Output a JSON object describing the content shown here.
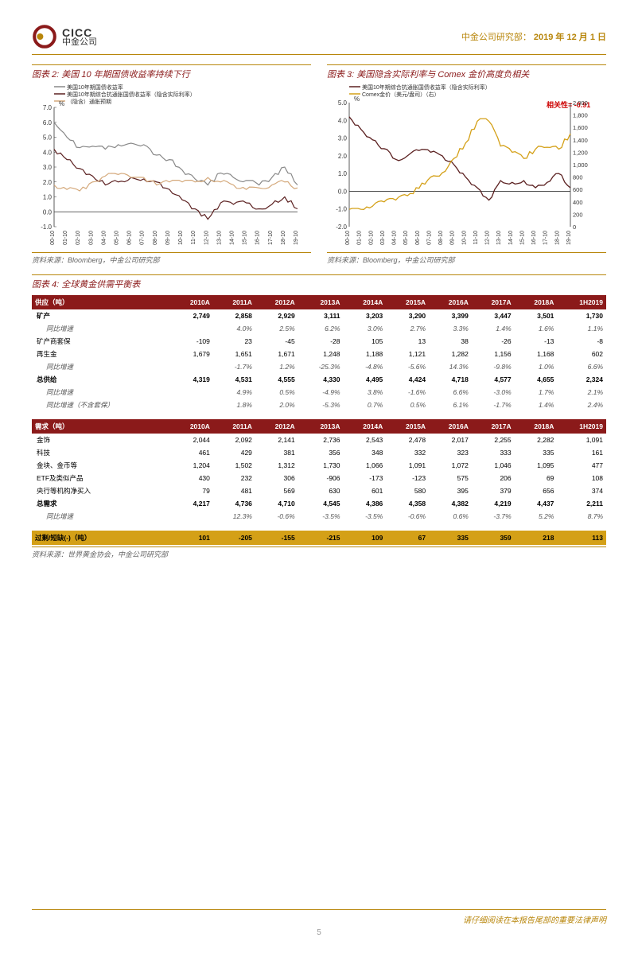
{
  "header": {
    "logo_en": "CICC",
    "logo_cn": "中金公司",
    "dept": "中金公司研究部：",
    "date": "2019 年 12 月 1 日"
  },
  "chart2": {
    "title": "图表 2: 美国 10 年期国债收益率持续下行",
    "legend": [
      {
        "label": "美国10年期国债收益率",
        "color": "#888888"
      },
      {
        "label": "美国10年期综合抗通胀国债收益率（隐含实际利率）",
        "color": "#5b2020"
      },
      {
        "label": "（隐含）通胀预期",
        "color": "#d4a87a"
      }
    ],
    "ylabel": "%",
    "ylim": [
      -1,
      7
    ],
    "yticks": [
      -1,
      0,
      1,
      2,
      3,
      4,
      5,
      6,
      7
    ],
    "xticks": [
      "00-10",
      "01-10",
      "02-10",
      "03-10",
      "04-10",
      "05-10",
      "06-10",
      "07-10",
      "08-10",
      "09-10",
      "10-10",
      "11-10",
      "12-10",
      "13-10",
      "14-10",
      "15-10",
      "16-10",
      "17-10",
      "18-10",
      "19-10"
    ],
    "series": {
      "nominal": [
        6.0,
        5.0,
        4.3,
        4.4,
        4.2,
        4.5,
        4.6,
        4.5,
        3.8,
        3.5,
        2.8,
        2.2,
        1.8,
        2.6,
        2.3,
        2.1,
        1.8,
        2.3,
        3.0,
        1.8
      ],
      "real": [
        4.2,
        3.5,
        2.9,
        2.4,
        1.8,
        2.0,
        2.3,
        2.2,
        2.0,
        1.5,
        0.8,
        0.2,
        -0.5,
        0.6,
        0.5,
        0.6,
        0.2,
        0.5,
        1.0,
        0.2
      ],
      "inflation": [
        1.8,
        1.5,
        1.4,
        2.0,
        2.4,
        2.5,
        2.3,
        2.3,
        1.8,
        2.0,
        2.0,
        2.0,
        2.3,
        2.0,
        1.8,
        1.5,
        1.6,
        1.8,
        2.0,
        1.6
      ]
    },
    "source": "资料来源：Bloomberg，中金公司研究部"
  },
  "chart3": {
    "title": "图表 3: 美国隐含实际利率与 Comex 金价高度负相关",
    "legend": [
      {
        "label": "美国10年期综合抗通胀国债收益率（隐含实际利率）",
        "color": "#5b2020"
      },
      {
        "label": "Comex金价（美元/盎司）（右）",
        "color": "#d4a017"
      }
    ],
    "correlation": "相关性= -0.91",
    "ylabel_l": "%",
    "ylim_l": [
      -2,
      5
    ],
    "yticks_l": [
      -2,
      -1,
      0,
      1,
      2,
      3,
      4,
      5
    ],
    "ylim_r": [
      0,
      2000
    ],
    "yticks_r": [
      0,
      200,
      400,
      600,
      800,
      1000,
      1200,
      1400,
      1600,
      1800,
      2000
    ],
    "xticks": [
      "00-10",
      "01-10",
      "02-10",
      "03-10",
      "04-10",
      "05-10",
      "06-10",
      "07-10",
      "08-10",
      "09-10",
      "10-10",
      "11-10",
      "12-10",
      "13-10",
      "14-10",
      "15-10",
      "16-10",
      "17-10",
      "18-10",
      "19-10"
    ],
    "series": {
      "real": [
        4.2,
        3.5,
        2.9,
        2.4,
        1.8,
        2.0,
        2.3,
        2.2,
        2.0,
        1.5,
        0.8,
        0.2,
        -0.5,
        0.6,
        0.5,
        0.6,
        0.2,
        0.5,
        1.0,
        0.2
      ],
      "gold": [
        280,
        280,
        330,
        400,
        430,
        500,
        620,
        800,
        870,
        1100,
        1350,
        1700,
        1700,
        1300,
        1200,
        1100,
        1250,
        1280,
        1250,
        1500
      ]
    },
    "source": "资料来源：Bloomberg，中金公司研究部"
  },
  "table4": {
    "title": "图表 4: 全球黄金供需平衡表",
    "supply_header": "供应（吨）",
    "demand_header": "需求（吨）",
    "years": [
      "2010A",
      "2011A",
      "2012A",
      "2013A",
      "2014A",
      "2015A",
      "2016A",
      "2017A",
      "2018A",
      "1H2019"
    ],
    "supply_rows": [
      {
        "k": "矿产",
        "label": "矿产",
        "v": [
          "2,749",
          "2,858",
          "2,929",
          "3,111",
          "3,203",
          "3,290",
          "3,399",
          "3,447",
          "3,501",
          "1,730"
        ],
        "bold": true
      },
      {
        "k": "矿产增速",
        "label": "同比增速",
        "v": [
          "",
          "4.0%",
          "2.5%",
          "6.2%",
          "3.0%",
          "2.7%",
          "3.3%",
          "1.4%",
          "1.6%",
          "1.1%"
        ],
        "italic": true,
        "sub": true
      },
      {
        "k": "矿商套保",
        "label": "矿产商套保",
        "v": [
          "-109",
          "23",
          "-45",
          "-28",
          "105",
          "13",
          "38",
          "-26",
          "-13",
          "-8"
        ]
      },
      {
        "k": "再生金",
        "label": "再生金",
        "v": [
          "1,679",
          "1,651",
          "1,671",
          "1,248",
          "1,188",
          "1,121",
          "1,282",
          "1,156",
          "1,168",
          "602"
        ]
      },
      {
        "k": "再生金增速",
        "label": "同比增速",
        "v": [
          "",
          "-1.7%",
          "1.2%",
          "-25.3%",
          "-4.8%",
          "-5.6%",
          "14.3%",
          "-9.8%",
          "1.0%",
          "6.6%"
        ],
        "italic": true,
        "sub": true
      },
      {
        "k": "总供给",
        "label": "总供给",
        "v": [
          "4,319",
          "4,531",
          "4,555",
          "4,330",
          "4,495",
          "4,424",
          "4,718",
          "4,577",
          "4,655",
          "2,324"
        ],
        "bold": true
      },
      {
        "k": "总供给增速",
        "label": "同比增速",
        "v": [
          "",
          "4.9%",
          "0.5%",
          "-4.9%",
          "3.8%",
          "-1.6%",
          "6.6%",
          "-3.0%",
          "1.7%",
          "2.1%"
        ],
        "italic": true,
        "sub": true
      },
      {
        "k": "总供给增速2",
        "label": "同比增速（不含套保）",
        "v": [
          "",
          "1.8%",
          "2.0%",
          "-5.3%",
          "0.7%",
          "0.5%",
          "6.1%",
          "-1.7%",
          "1.4%",
          "2.4%"
        ],
        "italic": true,
        "sub": true
      }
    ],
    "demand_rows": [
      {
        "k": "金饰",
        "label": "金饰",
        "v": [
          "2,044",
          "2,092",
          "2,141",
          "2,736",
          "2,543",
          "2,478",
          "2,017",
          "2,255",
          "2,282",
          "1,091"
        ]
      },
      {
        "k": "科技",
        "label": "科技",
        "v": [
          "461",
          "429",
          "381",
          "356",
          "348",
          "332",
          "323",
          "333",
          "335",
          "161"
        ]
      },
      {
        "k": "金块金币",
        "label": "金块、金币等",
        "v": [
          "1,204",
          "1,502",
          "1,312",
          "1,730",
          "1,066",
          "1,091",
          "1,072",
          "1,046",
          "1,095",
          "477"
        ]
      },
      {
        "k": "ETF",
        "label": "ETF及类似产品",
        "v": [
          "430",
          "232",
          "306",
          "-906",
          "-173",
          "-123",
          "575",
          "206",
          "69",
          "108"
        ]
      },
      {
        "k": "央行",
        "label": "央行等机构净买入",
        "v": [
          "79",
          "481",
          "569",
          "630",
          "601",
          "580",
          "395",
          "379",
          "656",
          "374"
        ]
      },
      {
        "k": "总需求",
        "label": "总需求",
        "v": [
          "4,217",
          "4,736",
          "4,710",
          "4,545",
          "4,386",
          "4,358",
          "4,382",
          "4,219",
          "4,437",
          "2,211"
        ],
        "bold": true
      },
      {
        "k": "总需求增速",
        "label": "同比增速",
        "v": [
          "",
          "12.3%",
          "-0.6%",
          "-3.5%",
          "-3.5%",
          "-0.6%",
          "0.6%",
          "-3.7%",
          "5.2%",
          "8.7%"
        ],
        "italic": true,
        "sub": true
      }
    ],
    "surplus": {
      "label": "过剩/短缺(-)（吨）",
      "v": [
        "101",
        "-205",
        "-155",
        "-215",
        "109",
        "67",
        "335",
        "359",
        "218",
        "113"
      ]
    },
    "source": "资料来源：世界黄金协会，中金公司研究部"
  },
  "footer": {
    "disclaimer": "请仔细阅读在本报告尾部的重要法律声明",
    "page": "5"
  }
}
